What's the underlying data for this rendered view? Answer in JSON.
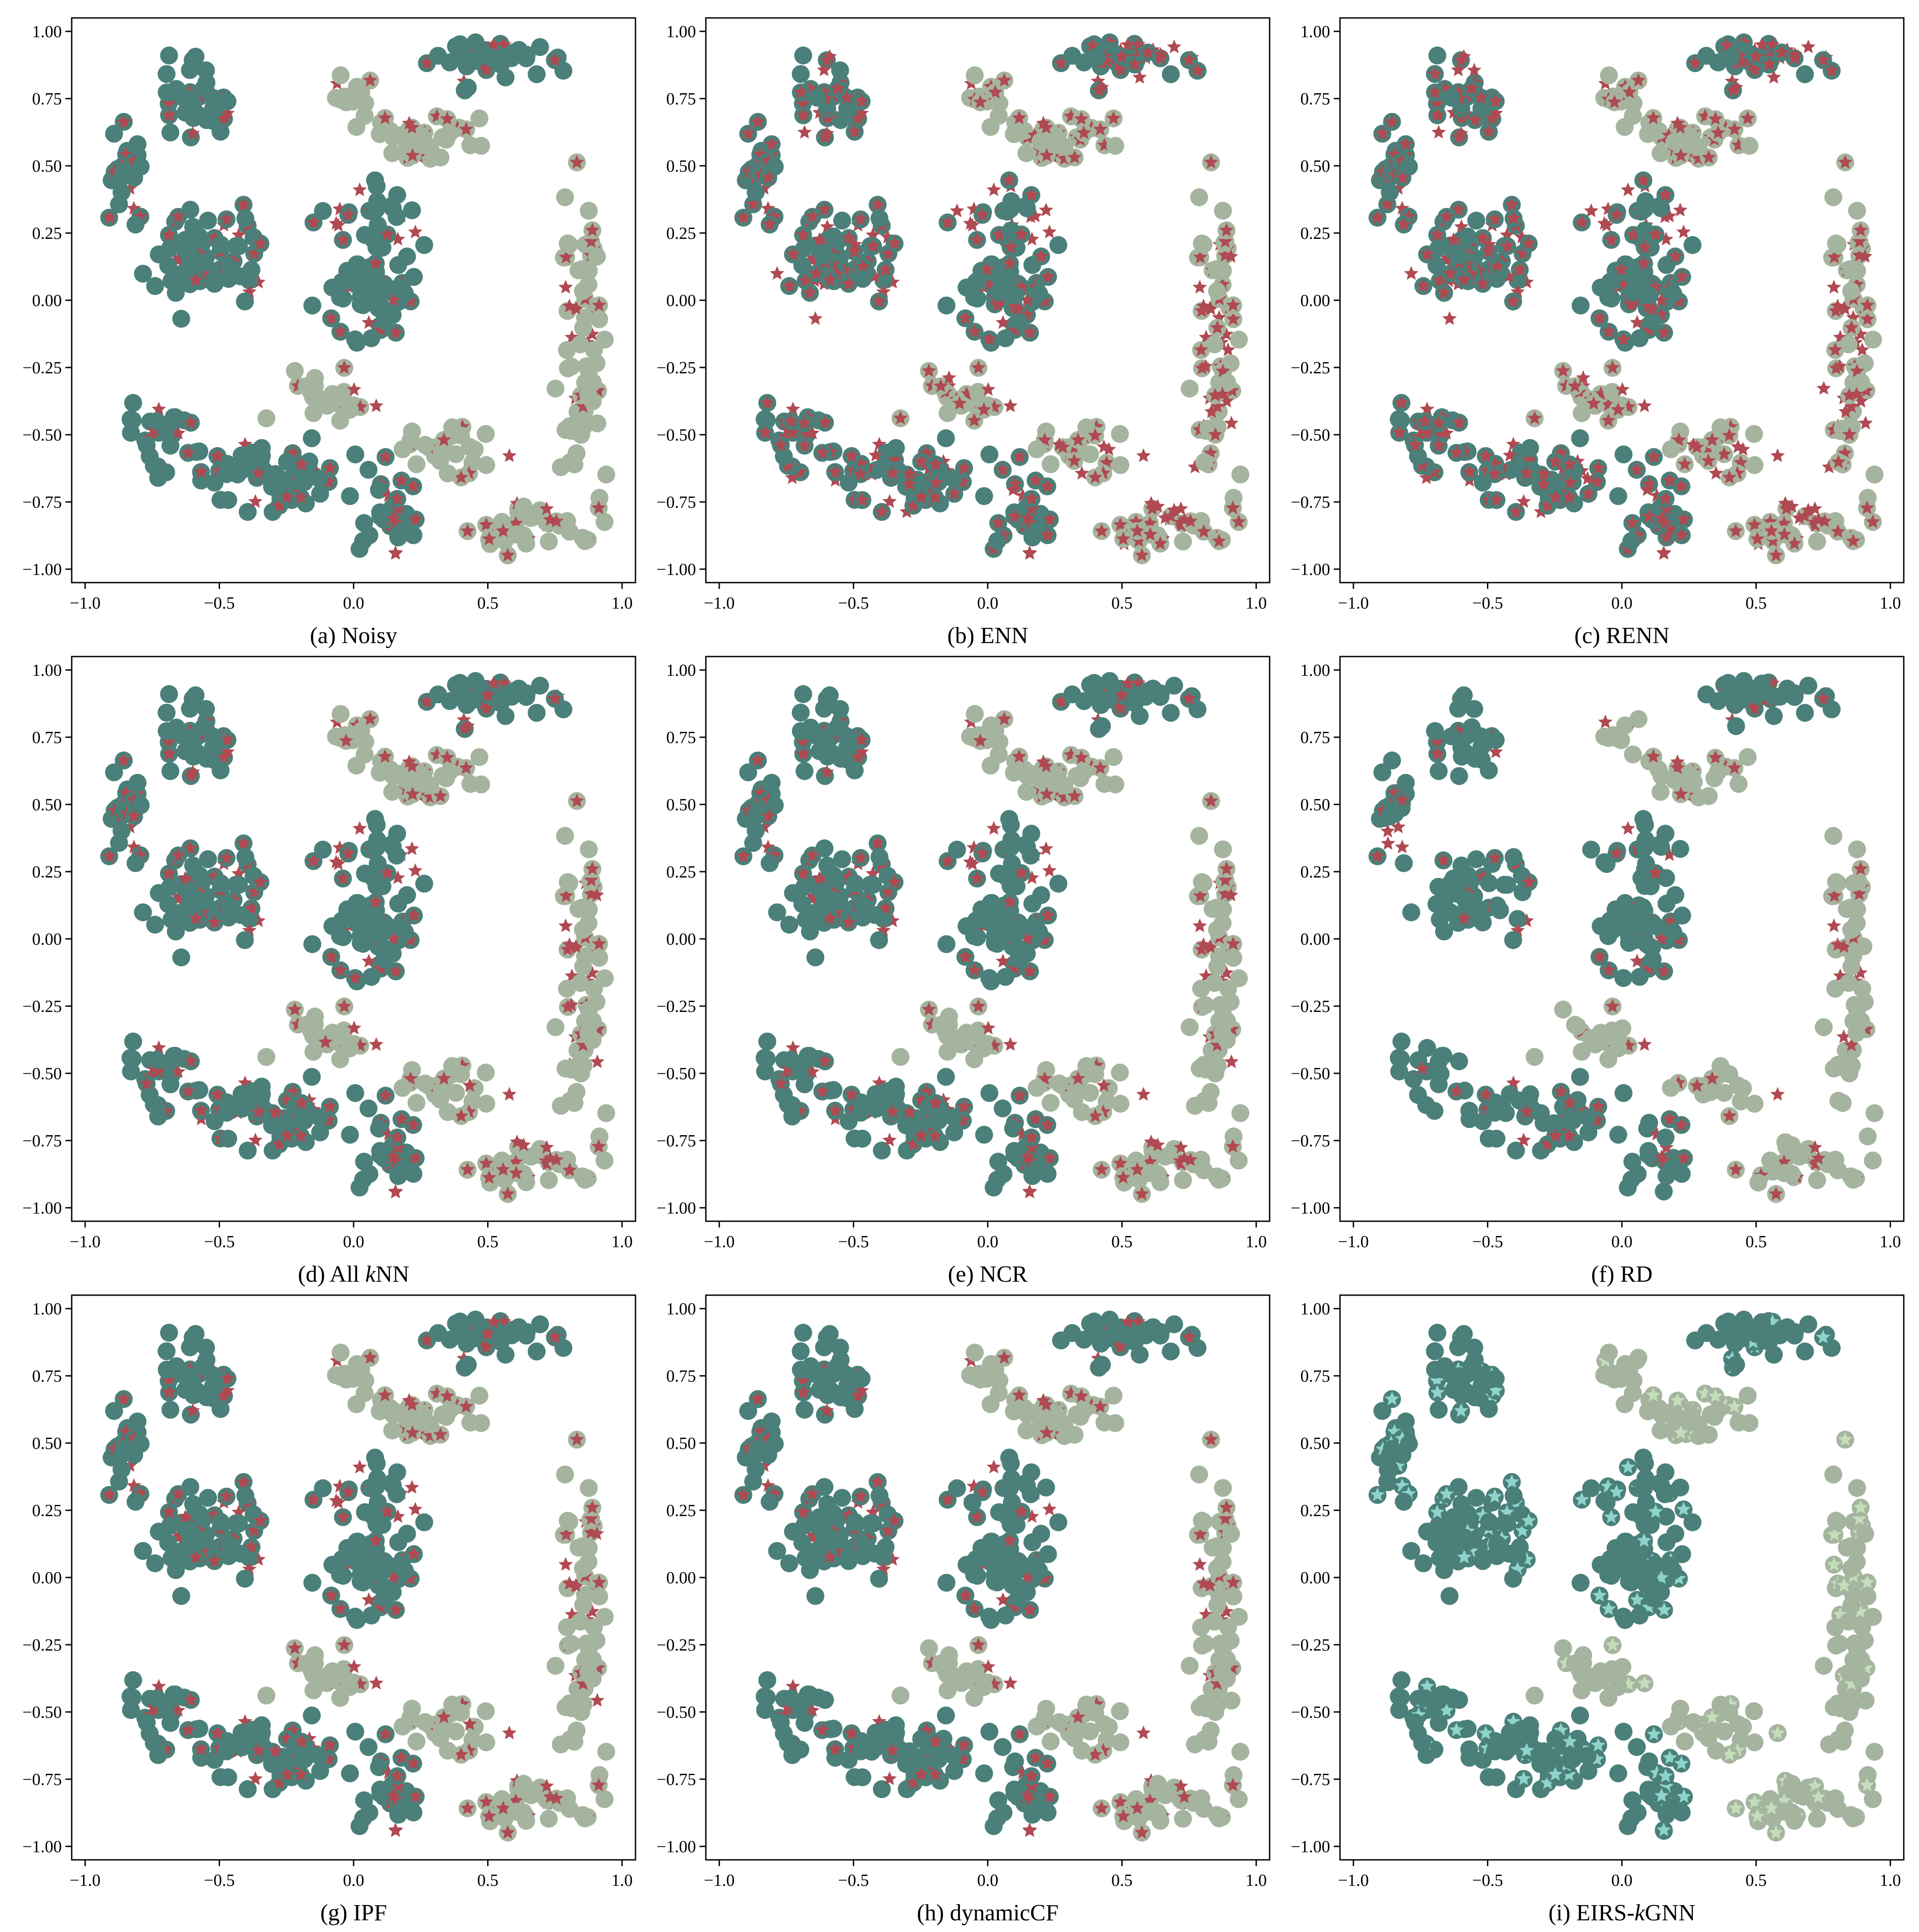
{
  "colors": {
    "class_a": "#4a8079",
    "class_b": "#a5b49e",
    "noise_star": "#b04a52",
    "corrected_a": "#8fd4cc",
    "corrected_b": "#c4ddbb"
  },
  "chart_data": [
    {
      "type": "scatter",
      "panel": "a",
      "caption": "(a) Noisy",
      "xlim": [
        -1.05,
        1.05
      ],
      "ylim": [
        -1.05,
        1.05
      ],
      "xticks": [
        "−1.0",
        "−0.5",
        "0.0",
        "0.5",
        "1.0"
      ],
      "yticks": [
        "1.00",
        "0.75",
        "0.50",
        "0.25",
        "0.00",
        "−0.25",
        "−0.50",
        "−0.75",
        "−1.00"
      ],
      "star_fraction": 0.36,
      "star_style": "noise",
      "shape_a_fraction": 0.95,
      "shape_b_fraction": 0.92
    },
    {
      "type": "scatter",
      "panel": "b",
      "caption": "(b) ENN",
      "xlim": [
        -1.05,
        1.05
      ],
      "ylim": [
        -1.05,
        1.05
      ],
      "xticks": [
        "−1.0",
        "−0.5",
        "0.0",
        "0.5",
        "1.0"
      ],
      "yticks": [
        "1.00",
        "0.75",
        "0.50",
        "0.25",
        "0.00",
        "−0.25",
        "−0.50",
        "−0.75",
        "−1.00"
      ],
      "star_fraction": 0.74,
      "star_style": "noise",
      "shape_a_fraction": 0.95,
      "shape_b_fraction": 0.92
    },
    {
      "type": "scatter",
      "panel": "c",
      "caption": "(c) RENN",
      "xlim": [
        -1.05,
        1.05
      ],
      "ylim": [
        -1.05,
        1.05
      ],
      "xticks": [
        "−1.0",
        "−0.5",
        "0.0",
        "0.5",
        "1.0"
      ],
      "yticks": [
        "1.00",
        "0.75",
        "0.50",
        "0.25",
        "0.00",
        "−0.25",
        "−0.50",
        "−0.75",
        "−1.00"
      ],
      "star_fraction": 0.78,
      "star_style": "noise",
      "shape_a_fraction": 0.95,
      "shape_b_fraction": 0.92
    },
    {
      "type": "scatter",
      "panel": "d",
      "caption_prefix": "(d) All ",
      "caption_italic": "k",
      "caption_suffix": "NN",
      "xlim": [
        -1.05,
        1.05
      ],
      "ylim": [
        -1.05,
        1.05
      ],
      "xticks": [
        "−1.0",
        "−0.5",
        "0.0",
        "0.5",
        "1.0"
      ],
      "yticks": [
        "1.00",
        "0.75",
        "0.50",
        "0.25",
        "0.00",
        "−0.25",
        "−0.50",
        "−0.75",
        "−1.00"
      ],
      "star_fraction": 0.46,
      "star_style": "noise",
      "shape_a_fraction": 0.95,
      "shape_b_fraction": 0.92
    },
    {
      "type": "scatter",
      "panel": "e",
      "caption": "(e) NCR",
      "xlim": [
        -1.05,
        1.05
      ],
      "ylim": [
        -1.05,
        1.05
      ],
      "xticks": [
        "−1.0",
        "−0.5",
        "0.0",
        "0.5",
        "1.0"
      ],
      "yticks": [
        "1.00",
        "0.75",
        "0.50",
        "0.25",
        "0.00",
        "−0.25",
        "−0.50",
        "−0.75",
        "−1.00"
      ],
      "star_fraction": 0.42,
      "star_style": "noise",
      "shape_a_fraction": 0.95,
      "shape_b_fraction": 0.92
    },
    {
      "type": "scatter",
      "panel": "f",
      "caption": "(f) RD",
      "xlim": [
        -1.05,
        1.05
      ],
      "ylim": [
        -1.05,
        1.05
      ],
      "xticks": [
        "−1.0",
        "−0.5",
        "0.0",
        "0.5",
        "1.0"
      ],
      "yticks": [
        "1.00",
        "0.75",
        "0.50",
        "0.25",
        "0.00",
        "−0.25",
        "−0.50",
        "−0.75",
        "−1.00"
      ],
      "star_fraction": 0.3,
      "star_style": "noise",
      "shape_a_fraction": 0.95,
      "shape_b_fraction": 0.92,
      "keep_fraction": 0.78
    },
    {
      "type": "scatter",
      "panel": "g",
      "caption": "(g) IPF",
      "xlim": [
        -1.05,
        1.05
      ],
      "ylim": [
        -1.05,
        1.05
      ],
      "xticks": [
        "−1.0",
        "−0.5",
        "0.0",
        "0.5",
        "1.0"
      ],
      "yticks": [
        "1.00",
        "0.75",
        "0.50",
        "0.25",
        "0.00",
        "−0.25",
        "−0.50",
        "−0.75",
        "−1.00"
      ],
      "star_fraction": 0.4,
      "star_style": "noise",
      "shape_a_fraction": 0.97,
      "shape_b_fraction": 0.97
    },
    {
      "type": "scatter",
      "panel": "h",
      "caption": "(h) dynamicCF",
      "xlim": [
        -1.05,
        1.05
      ],
      "ylim": [
        -1.05,
        1.05
      ],
      "xticks": [
        "−1.0",
        "−0.5",
        "0.0",
        "0.5",
        "1.0"
      ],
      "yticks": [
        "1.00",
        "0.75",
        "0.50",
        "0.25",
        "0.00",
        "−0.25",
        "−0.50",
        "−0.75",
        "−1.00"
      ],
      "star_fraction": 0.34,
      "star_style": "noise",
      "shape_a_fraction": 0.97,
      "shape_b_fraction": 0.97
    },
    {
      "type": "scatter",
      "panel": "i",
      "caption_prefix": "(i) EIRS-",
      "caption_italic": "k",
      "caption_suffix": "GNN",
      "xlim": [
        -1.05,
        1.05
      ],
      "ylim": [
        -1.05,
        1.05
      ],
      "xticks": [
        "−1.0",
        "−0.5",
        "0.0",
        "0.5",
        "1.0"
      ],
      "yticks": [
        "1.00",
        "0.75",
        "0.50",
        "0.25",
        "0.00",
        "−0.25",
        "−0.50",
        "−0.75",
        "−1.00"
      ],
      "star_fraction": 0.32,
      "star_style": "corrected",
      "shape_a_fraction": 0.99,
      "shape_b_fraction": 0.99
    }
  ]
}
